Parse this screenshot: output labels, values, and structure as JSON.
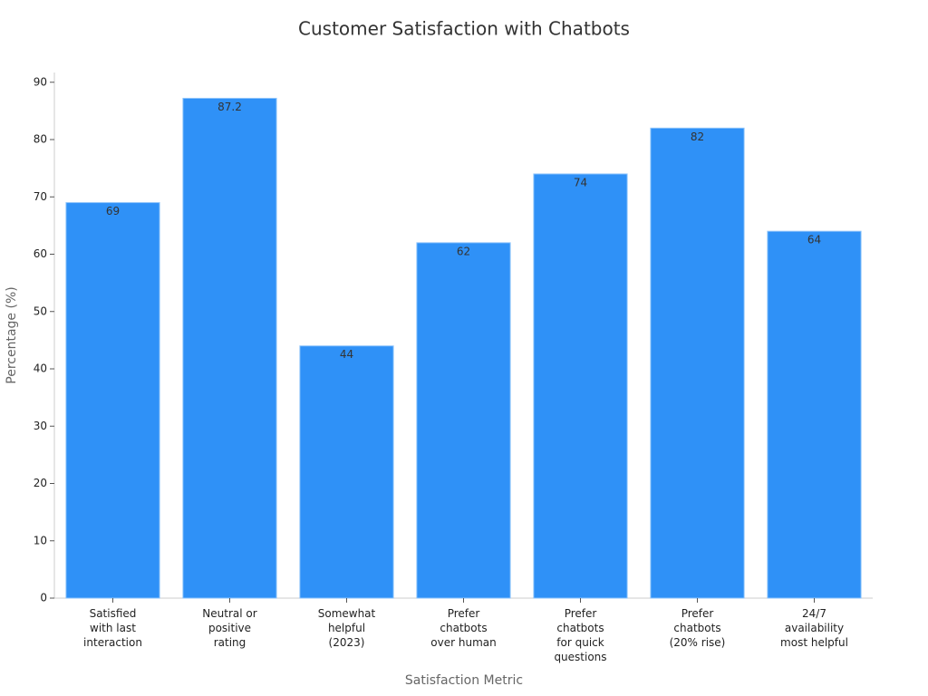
{
  "chart_data": {
    "type": "bar",
    "title": "Customer Satisfaction with Chatbots",
    "x_label": "Satisfaction Metric",
    "y_label": "Percentage (%)",
    "categories": [
      "Satisfied\nwith last\ninteraction",
      "Neutral or\npositive\nrating",
      "Somewhat\nhelpful\n(2023)",
      "Prefer\nchatbots\nover human",
      "Prefer\nchatbots\nfor quick\nquestions",
      "Prefer\nchatbots\n(20% rise)",
      "24/7\navailability\nmost helpful"
    ],
    "values": [
      69,
      87.2,
      44,
      62,
      74,
      82,
      64
    ],
    "color": "#2f91f7",
    "ylim": [
      0,
      91.7
    ],
    "yticks": [
      0,
      10,
      20,
      30,
      40,
      50,
      60,
      70,
      80,
      90
    ],
    "grid": false
  }
}
